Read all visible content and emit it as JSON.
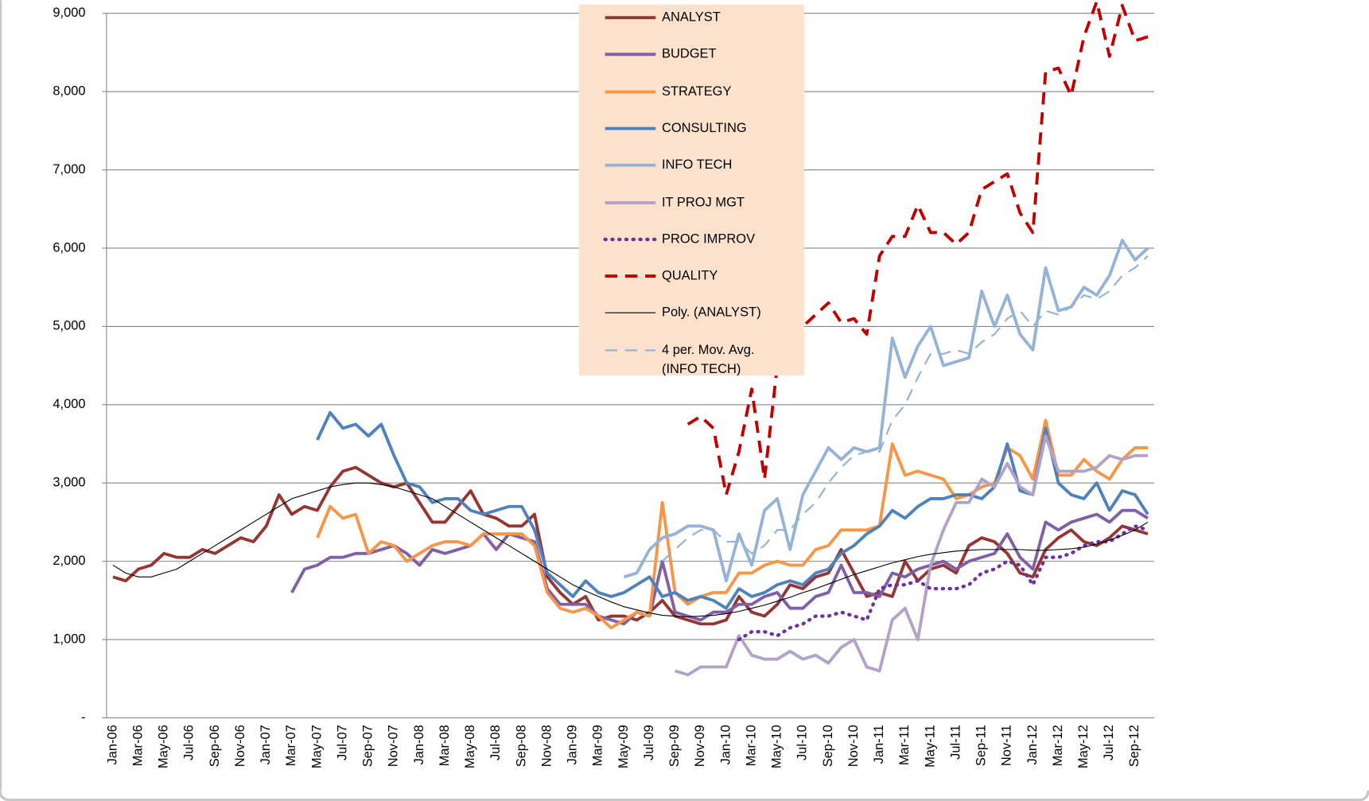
{
  "chart_data": {
    "type": "line",
    "categories": [
      "Jan-06",
      null,
      "Mar-06",
      null,
      "May-06",
      null,
      "Jul-06",
      null,
      "Sep-06",
      null,
      "Nov-06",
      null,
      "Jan-07",
      null,
      "Mar-07",
      null,
      "May-07",
      null,
      "Jul-07",
      null,
      "Sep-07",
      null,
      "Nov-07",
      null,
      "Jan-08",
      null,
      "Mar-08",
      null,
      "May-08",
      null,
      "Jul-08",
      null,
      "Sep-08",
      null,
      "Nov-08",
      null,
      "Jan-09",
      null,
      "Mar-09",
      null,
      "May-09",
      null,
      "Jul-09",
      null,
      "Sep-09",
      null,
      "Nov-09",
      null,
      "Jan-10",
      null,
      "Mar-10",
      null,
      "May-10",
      null,
      "Jul-10",
      null,
      "Sep-10",
      null,
      "Nov-10",
      null,
      "Jan-11",
      null,
      "Mar-11",
      null,
      "May-11",
      null,
      "Jul-11",
      null,
      "Sep-11",
      null,
      "Nov-11",
      null,
      "Jan-12",
      null,
      "Mar-12",
      null,
      "May-12",
      null,
      "Jul-12",
      null,
      "Sep-12",
      null
    ],
    "ylim": [
      0,
      9000
    ],
    "yticks": [
      {
        "value": 0,
        "label": "-"
      },
      {
        "value": 1000,
        "label": "1,000"
      },
      {
        "value": 2000,
        "label": "2,000"
      },
      {
        "value": 3000,
        "label": "3,000"
      },
      {
        "value": 4000,
        "label": "4,000"
      },
      {
        "value": 5000,
        "label": "5,000"
      },
      {
        "value": 6000,
        "label": "6,000"
      },
      {
        "value": 7000,
        "label": "7,000"
      },
      {
        "value": 8000,
        "label": "8,000"
      },
      {
        "value": 9000,
        "label": "9,000"
      }
    ],
    "grid": true,
    "series": [
      {
        "name": "ANALYST",
        "color": "#943634",
        "values": [
          1800,
          1750,
          1900,
          1950,
          2100,
          2050,
          2050,
          2150,
          2100,
          2200,
          2300,
          2250,
          2450,
          2850,
          2600,
          2700,
          2650,
          2950,
          3150,
          3200,
          3100,
          3000,
          2950,
          3000,
          2750,
          2500,
          2500,
          2700,
          2900,
          2600,
          2550,
          2450,
          2450,
          2600,
          1800,
          1600,
          1450,
          1550,
          1250,
          1300,
          1300,
          1250,
          1350,
          1500,
          1300,
          1250,
          1200,
          1200,
          1250,
          1550,
          1350,
          1300,
          1450,
          1700,
          1650,
          1800,
          1850,
          2150,
          1850,
          1550,
          1600,
          1550,
          2000,
          1750,
          1900,
          1950,
          1850,
          2200,
          2300,
          2250,
          2100,
          1850,
          1800,
          2150,
          2300,
          2400,
          2250,
          2200,
          2300,
          2450,
          2400,
          2350
        ]
      },
      {
        "name": "BUDGET",
        "color": "#7F5FA6",
        "values": [
          null,
          null,
          null,
          null,
          null,
          null,
          null,
          null,
          null,
          null,
          null,
          null,
          null,
          null,
          1600,
          1900,
          1950,
          2050,
          2050,
          2100,
          2100,
          2150,
          2200,
          2100,
          1950,
          2150,
          2100,
          2150,
          2200,
          2350,
          2150,
          2350,
          2300,
          2250,
          1650,
          1450,
          1450,
          1450,
          1300,
          1250,
          1200,
          1350,
          1300,
          2000,
          1350,
          1300,
          1250,
          1350,
          1350,
          1450,
          1450,
          1550,
          1600,
          1400,
          1400,
          1550,
          1600,
          1950,
          1600,
          1600,
          1550,
          1850,
          1800,
          1900,
          1950,
          2000,
          1900,
          2000,
          2050,
          2100,
          2350,
          2050,
          1900,
          2500,
          2400,
          2500,
          2550,
          2600,
          2500,
          2650,
          2650,
          2550
        ]
      },
      {
        "name": "STRATEGY",
        "color": "#F79646",
        "values": [
          null,
          null,
          null,
          null,
          null,
          null,
          null,
          null,
          null,
          null,
          null,
          null,
          null,
          null,
          null,
          null,
          2300,
          2700,
          2550,
          2600,
          2100,
          2250,
          2200,
          2000,
          2100,
          2200,
          2250,
          2250,
          2200,
          2350,
          2350,
          2350,
          2350,
          2200,
          1600,
          1400,
          1350,
          1400,
          1300,
          1150,
          1250,
          1350,
          1300,
          2750,
          1600,
          1450,
          1550,
          1600,
          1600,
          1850,
          1850,
          1950,
          2000,
          1950,
          1950,
          2150,
          2200,
          2400,
          2400,
          2400,
          2450,
          3500,
          3100,
          3150,
          3100,
          3050,
          2800,
          2850,
          2950,
          3000,
          3450,
          3350,
          3050,
          3800,
          3100,
          3100,
          3300,
          3150,
          3050,
          3300,
          3450,
          3450
        ]
      },
      {
        "name": "CONSULTING",
        "color": "#4F81BD",
        "values": [
          null,
          null,
          null,
          null,
          null,
          null,
          null,
          null,
          null,
          null,
          null,
          null,
          null,
          null,
          null,
          null,
          3550,
          3900,
          3700,
          3750,
          3600,
          3750,
          3350,
          3000,
          2950,
          2750,
          2800,
          2800,
          2650,
          2600,
          2650,
          2700,
          2700,
          2400,
          1850,
          1700,
          1550,
          1750,
          1600,
          1550,
          1600,
          1700,
          1800,
          1550,
          1600,
          1500,
          1550,
          1500,
          1400,
          1650,
          1550,
          1600,
          1700,
          1750,
          1700,
          1850,
          1900,
          2100,
          2200,
          2350,
          2450,
          2650,
          2550,
          2700,
          2800,
          2800,
          2850,
          2850,
          2800,
          2950,
          3500,
          2900,
          2850,
          3700,
          3000,
          2850,
          2800,
          3000,
          2650,
          2900,
          2850,
          2600
        ]
      },
      {
        "name": "INFO TECH",
        "color": "#95B3D7",
        "values": [
          null,
          null,
          null,
          null,
          null,
          null,
          null,
          null,
          null,
          null,
          null,
          null,
          null,
          null,
          null,
          null,
          null,
          null,
          null,
          null,
          null,
          null,
          null,
          null,
          null,
          null,
          null,
          null,
          null,
          null,
          null,
          null,
          null,
          null,
          null,
          null,
          null,
          null,
          null,
          null,
          1800,
          1850,
          2150,
          2300,
          2350,
          2450,
          2450,
          2400,
          1750,
          2350,
          1950,
          2650,
          2800,
          2150,
          2850,
          3150,
          3450,
          3300,
          3450,
          3400,
          3450,
          4850,
          4350,
          4750,
          5000,
          4500,
          4550,
          4600,
          5450,
          5000,
          5400,
          4900,
          4700,
          5750,
          5200,
          5250,
          5500,
          5400,
          5650,
          6100,
          5850,
          6000
        ]
      },
      {
        "name": "IT PROJ MGT",
        "color": "#B3A2C7",
        "values": [
          null,
          null,
          null,
          null,
          null,
          null,
          null,
          null,
          null,
          null,
          null,
          null,
          null,
          null,
          null,
          null,
          null,
          null,
          null,
          null,
          null,
          null,
          null,
          null,
          null,
          null,
          null,
          null,
          null,
          null,
          null,
          null,
          null,
          null,
          null,
          null,
          null,
          null,
          null,
          null,
          null,
          null,
          null,
          null,
          600,
          550,
          650,
          650,
          650,
          1050,
          800,
          750,
          750,
          850,
          750,
          800,
          700,
          900,
          1000,
          650,
          600,
          1250,
          1400,
          1000,
          1950,
          2400,
          2750,
          2750,
          3050,
          2950,
          3250,
          2950,
          2850,
          3600,
          3150,
          3150,
          3150,
          3200,
          3350,
          3300,
          3350,
          3350
        ]
      },
      {
        "name": "PROC IMPROV",
        "color": "#7030A0",
        "dash": "dotted",
        "values": [
          null,
          null,
          null,
          null,
          null,
          null,
          null,
          null,
          null,
          null,
          null,
          null,
          null,
          null,
          null,
          null,
          null,
          null,
          null,
          null,
          null,
          null,
          null,
          null,
          null,
          null,
          null,
          null,
          null,
          null,
          null,
          null,
          null,
          null,
          null,
          null,
          null,
          null,
          null,
          null,
          null,
          null,
          null,
          null,
          null,
          null,
          null,
          null,
          null,
          1000,
          1100,
          1100,
          1050,
          1150,
          1200,
          1300,
          1300,
          1350,
          1300,
          1250,
          1650,
          1700,
          1700,
          1750,
          1650,
          1650,
          1650,
          1700,
          1850,
          1900,
          2000,
          1950,
          1700,
          2050,
          2050,
          2100,
          2200,
          2250,
          2250,
          2350,
          2450,
          2400
        ]
      },
      {
        "name": "QUALITY",
        "color": "#C00000",
        "dash": "dashed",
        "values": [
          null,
          null,
          null,
          null,
          null,
          null,
          null,
          null,
          null,
          null,
          null,
          null,
          null,
          null,
          null,
          null,
          null,
          null,
          null,
          null,
          null,
          null,
          null,
          null,
          null,
          null,
          null,
          null,
          null,
          null,
          null,
          null,
          null,
          null,
          null,
          null,
          null,
          null,
          null,
          null,
          null,
          null,
          null,
          null,
          null,
          3750,
          3850,
          3700,
          2850,
          3400,
          4200,
          3050,
          4500,
          4400,
          5000,
          5150,
          5300,
          5050,
          5100,
          4900,
          5900,
          6150,
          6150,
          6550,
          6200,
          6200,
          6050,
          6200,
          6750,
          6850,
          6950,
          6450,
          6200,
          8250,
          8300,
          7950,
          8700,
          9150,
          8450,
          9100,
          8650,
          8700
        ]
      },
      {
        "name": "Poly. (ANALYST)",
        "color": "#000000",
        "width": 1,
        "values": [
          1950,
          1850,
          1800,
          1800,
          1850,
          1900,
          2000,
          2100,
          2200,
          2300,
          2400,
          2500,
          2600,
          2700,
          2800,
          2850,
          2900,
          2950,
          2980,
          3000,
          3000,
          2980,
          2950,
          2900,
          2850,
          2800,
          2700,
          2600,
          2500,
          2400,
          2300,
          2200,
          2100,
          2000,
          1900,
          1800,
          1700,
          1620,
          1550,
          1480,
          1420,
          1380,
          1340,
          1310,
          1300,
          1290,
          1300,
          1310,
          1330,
          1360,
          1400,
          1440,
          1490,
          1540,
          1600,
          1650,
          1710,
          1770,
          1830,
          1880,
          1930,
          1980,
          2020,
          2060,
          2090,
          2110,
          2130,
          2140,
          2150,
          2150,
          2150,
          2150,
          2140,
          2140,
          2150,
          2160,
          2180,
          2220,
          2270,
          2330,
          2400,
          2500
        ]
      },
      {
        "name": "4 per. Mov. Avg. (INFO TECH)",
        "color": "#95B3D7",
        "dash": "dashed",
        "width": 2,
        "values": [
          null,
          null,
          null,
          null,
          null,
          null,
          null,
          null,
          null,
          null,
          null,
          null,
          null,
          null,
          null,
          null,
          null,
          null,
          null,
          null,
          null,
          null,
          null,
          null,
          null,
          null,
          null,
          null,
          null,
          null,
          null,
          null,
          null,
          null,
          null,
          null,
          null,
          null,
          null,
          null,
          null,
          null,
          null,
          2000,
          2150,
          2300,
          2400,
          2400,
          2250,
          2250,
          2100,
          2200,
          2400,
          2400,
          2600,
          2750,
          3000,
          3200,
          3350,
          3400,
          3400,
          3800,
          4000,
          4350,
          4650,
          4650,
          4700,
          4650,
          4800,
          4900,
          5100,
          5200,
          5000,
          5200,
          5150,
          5250,
          5400,
          5350,
          5450,
          5650,
          5750,
          5900
        ]
      }
    ]
  }
}
